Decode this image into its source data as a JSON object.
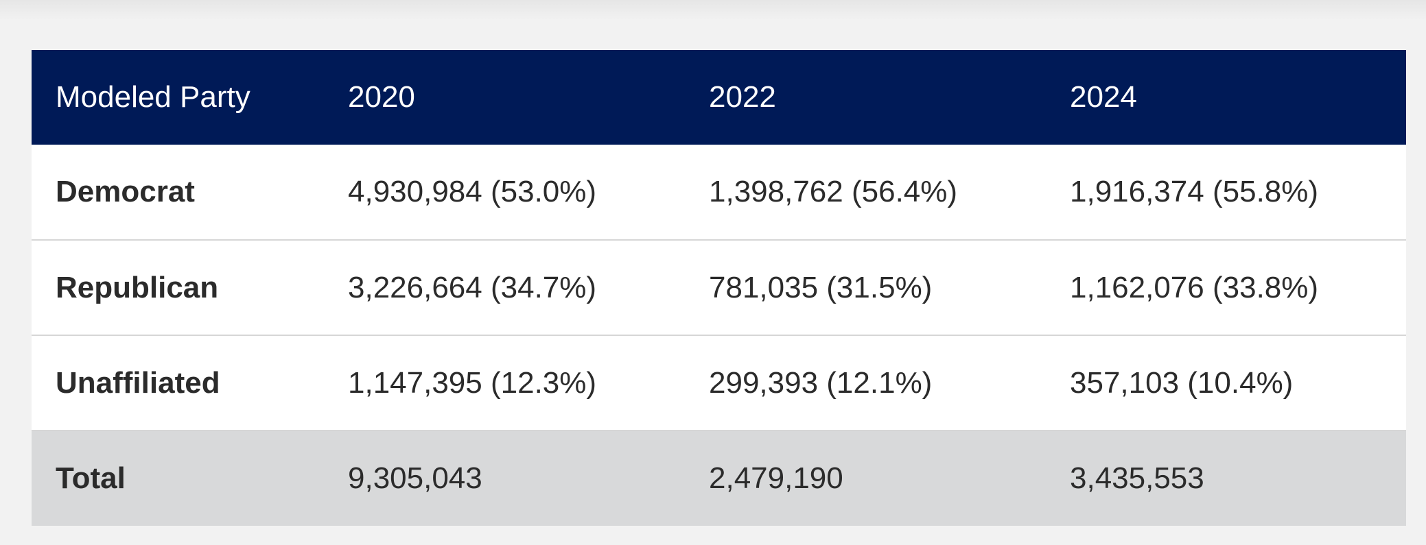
{
  "table": {
    "header": {
      "label": "Modeled Party",
      "years": [
        "2020",
        "2022",
        "2024"
      ]
    },
    "rows": [
      {
        "label": "Democrat",
        "values": [
          "4,930,984 (53.0%)",
          "1,398,762 (56.4%)",
          "1,916,374 (55.8%)"
        ]
      },
      {
        "label": "Republican",
        "values": [
          "3,226,664 (34.7%)",
          "781,035 (31.5%)",
          "1,162,076 (33.8%)"
        ]
      },
      {
        "label": "Unaffiliated",
        "values": [
          "1,147,395 (12.3%)",
          "299,393 (12.1%)",
          "357,103 (10.4%)"
        ]
      }
    ],
    "total": {
      "label": "Total",
      "values": [
        "9,305,043",
        "2,479,190",
        "3,435,553"
      ]
    }
  },
  "colors": {
    "header_bg": "#001a57",
    "total_bg": "#d8d9da",
    "page_bg": "#f2f2f2"
  }
}
